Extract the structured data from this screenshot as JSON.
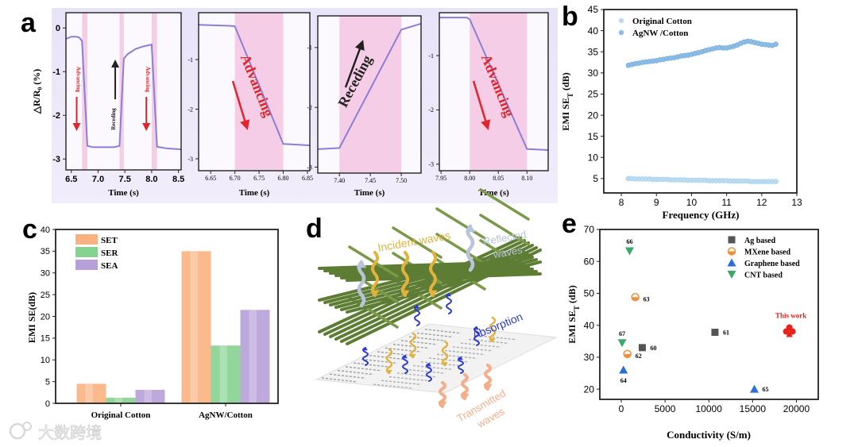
{
  "panel_labels": {
    "a": "a",
    "b": "b",
    "c": "c",
    "d": "d",
    "e": "e"
  },
  "watermark": "大数跨境",
  "chart_data": [
    {
      "id": "a1",
      "type": "line",
      "xlabel": "Time (s)",
      "ylabel": "△R/R₀ (%)",
      "xlim": [
        6.4,
        8.55
      ],
      "ylim": [
        -3.25,
        0.35
      ],
      "xticks": [
        "6.5",
        "7.0",
        "7.5",
        "8.0",
        "8.5"
      ],
      "yticks": [
        "0",
        "-1",
        "-2",
        "-3"
      ],
      "shaded_x": [
        [
          6.7,
          6.8
        ],
        [
          7.4,
          7.48
        ],
        [
          8.0,
          8.1
        ]
      ],
      "x": [
        6.4,
        6.5,
        6.6,
        6.65,
        6.7,
        6.8,
        6.9,
        7.3,
        7.4,
        7.48,
        7.55,
        7.7,
        7.85,
        8.0,
        8.1,
        8.3,
        8.55
      ],
      "y": [
        -0.25,
        -0.2,
        -0.2,
        -0.22,
        -0.3,
        -2.7,
        -2.73,
        -2.73,
        -2.7,
        -0.7,
        -0.6,
        -0.48,
        -0.42,
        -0.38,
        -2.72,
        -2.76,
        -2.78
      ],
      "annotations": [
        {
          "text": "Advancing",
          "direction": "down",
          "color": "#e0262a",
          "at": 6.6
        },
        {
          "text": "Receding",
          "direction": "up",
          "color": "#222222",
          "at": 7.32
        },
        {
          "text": "Advancing",
          "direction": "down",
          "color": "#e0262a",
          "at": 7.9
        }
      ]
    },
    {
      "id": "a2",
      "type": "line",
      "xlabel": "Time (s)",
      "xlim": [
        6.625,
        6.855
      ],
      "ylim": [
        -3.24,
        -0.056
      ],
      "xticks": [
        "6.65",
        "6.70",
        "6.75",
        "6.80",
        "6.85"
      ],
      "yticks": [
        "-1",
        "-2",
        "-3"
      ],
      "shaded_x": [
        [
          6.7,
          6.8
        ]
      ],
      "x": [
        6.625,
        6.69,
        6.7,
        6.8,
        6.855
      ],
      "y": [
        -0.3,
        -0.32,
        -0.33,
        -2.7,
        -2.73
      ],
      "annotations": [
        {
          "text": "Advancing",
          "direction": "down",
          "color": "#e0262a"
        }
      ]
    },
    {
      "id": "a3",
      "type": "line",
      "xlabel": "Time (s)",
      "xlim": [
        7.365,
        7.532
      ],
      "ylim": [
        -3.1,
        -0.47
      ],
      "xticks": [
        "7.40",
        "7.45",
        "7.50"
      ],
      "yticks": [
        "-1",
        "-2",
        "-3"
      ],
      "shaded_x": [
        [
          7.4,
          7.5
        ]
      ],
      "x": [
        7.365,
        7.4,
        7.5,
        7.532
      ],
      "y": [
        -2.7,
        -2.68,
        -0.7,
        -0.6
      ],
      "annotations": [
        {
          "text": "Receding",
          "direction": "up",
          "color": "#222222"
        }
      ]
    },
    {
      "id": "a4",
      "type": "line",
      "xlabel": "Time (s)",
      "xlim": [
        7.947,
        8.137
      ],
      "ylim": [
        -3.12,
        -0.21
      ],
      "xticks": [
        "7.95",
        "8.00",
        "8.05",
        "8.10"
      ],
      "yticks": [
        "-1",
        "-2",
        "-3"
      ],
      "shaded_x": [
        [
          8.0,
          8.1
        ]
      ],
      "x": [
        7.947,
        7.995,
        8.0,
        8.1,
        8.137
      ],
      "y": [
        -0.3,
        -0.3,
        -0.33,
        -2.72,
        -2.74
      ],
      "annotations": [
        {
          "text": "Advancing",
          "direction": "down",
          "color": "#e0262a"
        }
      ]
    },
    {
      "id": "b",
      "type": "scatter",
      "xlabel": "Frequency (GHz)",
      "ylabel_parts": [
        "EMI SE",
        "T",
        " (dB)"
      ],
      "xlim": [
        7.5,
        13
      ],
      "ylim": [
        1.6,
        45
      ],
      "xticks": [
        "8",
        "9",
        "10",
        "11",
        "12",
        "13"
      ],
      "yticks": [
        "5",
        "10",
        "15",
        "20",
        "25",
        "30",
        "35",
        "40",
        "45"
      ],
      "legend": "top-left",
      "x": [
        8.2,
        8.3,
        8.4,
        8.5,
        8.6,
        8.7,
        8.8,
        8.9,
        9.0,
        9.1,
        9.2,
        9.3,
        9.4,
        9.5,
        9.6,
        9.7,
        9.8,
        9.9,
        10.0,
        10.1,
        10.2,
        10.3,
        10.4,
        10.5,
        10.6,
        10.7,
        10.8,
        10.9,
        11.0,
        11.1,
        11.2,
        11.3,
        11.4,
        11.5,
        11.6,
        11.7,
        11.8,
        11.9,
        12.0,
        12.1,
        12.2,
        12.3,
        12.4
      ],
      "series": [
        {
          "name": "Original Cotton",
          "color": "#b9dcf2",
          "values": [
            5.0,
            5.0,
            4.9,
            4.9,
            4.9,
            4.9,
            4.9,
            4.8,
            4.8,
            4.8,
            4.8,
            4.8,
            4.7,
            4.7,
            4.7,
            4.7,
            4.7,
            4.6,
            4.6,
            4.6,
            4.6,
            4.6,
            4.6,
            4.5,
            4.5,
            4.5,
            4.5,
            4.5,
            4.5,
            4.4,
            4.4,
            4.4,
            4.4,
            4.4,
            4.4,
            4.3,
            4.3,
            4.3,
            4.3,
            4.3,
            4.3,
            4.3,
            4.3
          ]
        },
        {
          "name": "AgNW /Cotton",
          "color": "#8cbde6",
          "values": [
            31.8,
            32.0,
            32.2,
            32.3,
            32.5,
            32.6,
            32.7,
            32.8,
            32.9,
            33.1,
            33.2,
            33.4,
            33.5,
            33.6,
            33.8,
            34.0,
            34.1,
            34.2,
            34.4,
            34.6,
            34.8,
            35.0,
            35.3,
            35.5,
            35.7,
            35.9,
            36.0,
            35.9,
            35.9,
            36.1,
            36.3,
            36.6,
            37.0,
            37.3,
            37.5,
            37.4,
            37.2,
            37.0,
            36.8,
            36.7,
            36.6,
            36.5,
            36.8
          ]
        }
      ]
    },
    {
      "id": "c",
      "type": "bar",
      "xlabel": "",
      "ylabel": "EMI SE(dB)",
      "ylim": [
        0,
        40
      ],
      "yticks": [
        "0",
        "5",
        "10",
        "15",
        "20",
        "25",
        "30",
        "35",
        "40"
      ],
      "categories": [
        "Original Cotton",
        "AgNW/Cotton"
      ],
      "legend": "top-left",
      "series": [
        {
          "name": "SET",
          "color": "#f9b27f",
          "values": [
            4.5,
            35.0
          ]
        },
        {
          "name": "SER",
          "color": "#86d291",
          "values": [
            1.3,
            13.3
          ]
        },
        {
          "name": "SEA",
          "color": "#b7a0d8",
          "values": [
            3.1,
            21.5
          ]
        }
      ]
    },
    {
      "id": "e",
      "type": "scatter",
      "xlabel": "Conductivity (S/m)",
      "ylabel_parts": [
        "EMI SE",
        "T",
        " (dB)"
      ],
      "xlim": [
        -2450,
        22500
      ],
      "ylim": [
        16.8,
        70
      ],
      "xticks": [
        "0",
        "5000",
        "10000",
        "15000",
        "20000"
      ],
      "yticks": [
        "20",
        "30",
        "40",
        "50",
        "60",
        "70"
      ],
      "legend": "top-right",
      "series": [
        {
          "name": "Ag based",
          "marker": "square",
          "color": "#555555",
          "points": [
            {
              "x": 2400,
              "y": 33,
              "label": "60"
            },
            {
              "x": 10700,
              "y": 37.8,
              "label": "61"
            }
          ]
        },
        {
          "name": "MXene based",
          "marker": "half-circle",
          "color": "#f0903a",
          "points": [
            {
              "x": 700,
              "y": 31,
              "label": "62"
            },
            {
              "x": 1600,
              "y": 48.8,
              "label": "63"
            }
          ]
        },
        {
          "name": "Graphene based",
          "marker": "triangle-up",
          "color": "#2a6fd6",
          "points": [
            {
              "x": 250,
              "y": 26,
              "label": "64"
            },
            {
              "x": 15200,
              "y": 20,
              "label": "65"
            }
          ]
        },
        {
          "name": "CNT based",
          "marker": "triangle-down",
          "color": "#3aaa6a",
          "points": [
            {
              "x": 950,
              "y": 63.3,
              "label": "66"
            },
            {
              "x": 100,
              "y": 34.5,
              "label": "67"
            }
          ]
        }
      ],
      "highlight": {
        "label": "This work",
        "x": 19200,
        "y": 38.3,
        "color": "#e8221a"
      }
    }
  ],
  "diagram_d": {
    "incident": "Incident waves",
    "reflected": [
      "Reflected",
      "waves"
    ],
    "absorption": "Absorption",
    "transmitted": [
      "Transmitted",
      "waves"
    ],
    "colors": {
      "incident": "#e2b23c",
      "reflected": "#b8c4dc",
      "absorption": "#2b3bd0",
      "transmitted": "#f5ad8a",
      "fiber": "#5e7d34"
    }
  }
}
